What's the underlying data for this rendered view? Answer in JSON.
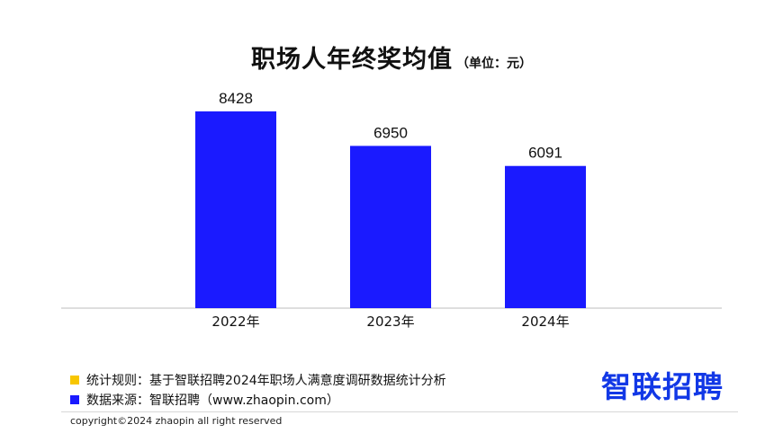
{
  "header": {
    "title": "职场人年终奖均值",
    "unit": "（单位：元）"
  },
  "chart_data": {
    "type": "bar",
    "categories": [
      "2022年",
      "2023年",
      "2024年"
    ],
    "values": [
      8428,
      6950,
      6091
    ],
    "data_labels": [
      "8428",
      "6950",
      "6091"
    ],
    "ylim": [
      0,
      9000
    ],
    "grid": false,
    "bar_color": "#1a1aff"
  },
  "notes": [
    {
      "text": "统计规则：基于智联招聘2024年职场人满意度调研数据统计分析",
      "color": "#f7c600"
    },
    {
      "text": "数据来源：智联招聘（www.zhaopin.com）",
      "color": "#1a1aff"
    }
  ],
  "brand": {
    "logo_text": "智联招聘",
    "color": "#1238e6"
  },
  "copyright": "copyright©2024 zhaopin all right reserved"
}
